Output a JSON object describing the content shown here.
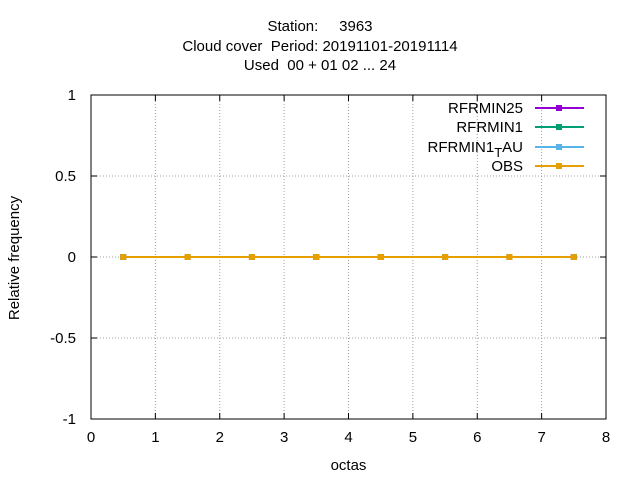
{
  "chart_data": {
    "type": "line",
    "title_lines": [
      "Station:     3963",
      "Cloud cover  Period: 20191101-20191114",
      "Used  00 + 01 02 ... 24"
    ],
    "xlabel": "octas",
    "ylabel": "Relative frequency",
    "xlim": [
      0,
      8
    ],
    "ylim": [
      -1,
      1
    ],
    "xticks": [
      0,
      1,
      2,
      3,
      4,
      5,
      6,
      7,
      8
    ],
    "xtick_labels": [
      "0",
      "1",
      "2",
      "3",
      "4",
      "5",
      "6",
      "7",
      "8"
    ],
    "yticks": [
      -1,
      -0.5,
      0,
      0.5,
      1
    ],
    "ytick_labels": [
      "-1",
      "-0.5",
      "0",
      "0.5",
      "1"
    ],
    "grid": true,
    "legend_position": "top-right",
    "x": [
      0.5,
      1.5,
      2.5,
      3.5,
      4.5,
      5.5,
      6.5,
      7.5
    ],
    "series": [
      {
        "name": "RFRMIN25",
        "color": "#9400d3",
        "values": [
          0,
          0,
          0,
          0,
          0,
          0,
          0,
          0
        ]
      },
      {
        "name": "RFRMIN1",
        "color": "#009e73",
        "values": [
          0,
          0,
          0,
          0,
          0,
          0,
          0,
          0
        ]
      },
      {
        "name": "RFRMIN1_T AU",
        "name_parts": [
          "RFRMIN1",
          "T",
          "AU"
        ],
        "color": "#56b4e9",
        "values": [
          0,
          0,
          0,
          0,
          0,
          0,
          0,
          0
        ]
      },
      {
        "name": "OBS",
        "color": "#e69f00",
        "values": [
          0,
          0,
          0,
          0,
          0,
          0,
          0,
          0
        ]
      }
    ]
  }
}
